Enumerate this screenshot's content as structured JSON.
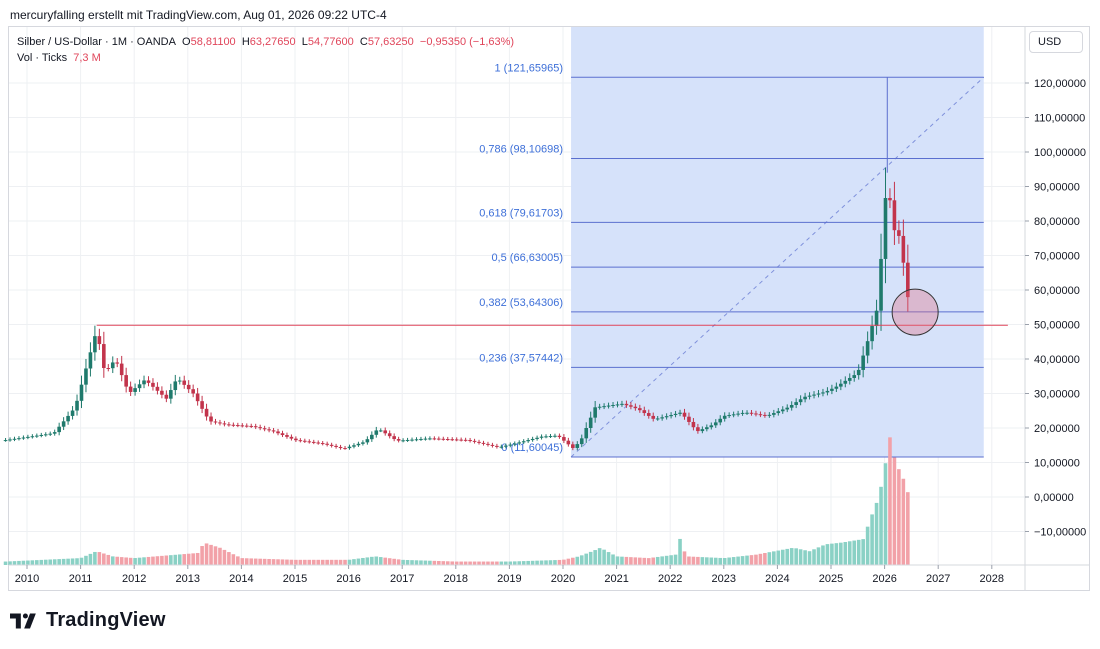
{
  "header": {
    "attribution": "mercuryfalling erstellt mit TradingView.com, Aug 01, 2026 09:22 UTC-4"
  },
  "legend": {
    "symbol": "Silber / US-Dollar · 1M · OANDA",
    "o_label": "O",
    "o_value": "58,81100",
    "h_label": "H",
    "h_value": "63,27650",
    "l_label": "L",
    "l_value": "54,77600",
    "c_label": "C",
    "c_value": "57,63250",
    "change": "−0,95350 (−1,63%)",
    "vol_label": "Vol · Ticks",
    "vol_value": "7,3 M"
  },
  "currency": "USD",
  "brand": {
    "name": "TradingView"
  },
  "chart_data": {
    "type": "candlestick",
    "title": "Silber / US-Dollar · 1M · OANDA",
    "ylim": [
      -20,
      130
    ],
    "y_ticks": [
      {
        "v": 120,
        "label": "120,00000"
      },
      {
        "v": 110,
        "label": "110,00000"
      },
      {
        "v": 100,
        "label": "100,00000"
      },
      {
        "v": 90,
        "label": "90,00000"
      },
      {
        "v": 80,
        "label": "80,00000"
      },
      {
        "v": 70,
        "label": "70,00000"
      },
      {
        "v": 60,
        "label": "60,00000"
      },
      {
        "v": 50,
        "label": "50,00000"
      },
      {
        "v": 40,
        "label": "40,00000"
      },
      {
        "v": 30,
        "label": "30,00000"
      },
      {
        "v": 20,
        "label": "20,00000"
      },
      {
        "v": 10,
        "label": "10,00000"
      },
      {
        "v": 0,
        "label": "0,00000"
      },
      {
        "v": -10,
        "label": "−10,00000"
      }
    ],
    "x_ticks": [
      {
        "v": 2010,
        "label": "2010"
      },
      {
        "v": 2011,
        "label": "2011"
      },
      {
        "v": 2012,
        "label": "2012"
      },
      {
        "v": 2013,
        "label": "2013"
      },
      {
        "v": 2014,
        "label": "2014"
      },
      {
        "v": 2015,
        "label": "2015"
      },
      {
        "v": 2016,
        "label": "2016"
      },
      {
        "v": 2017,
        "label": "2017"
      },
      {
        "v": 2018,
        "label": "2018"
      },
      {
        "v": 2019,
        "label": "2019"
      },
      {
        "v": 2020,
        "label": "2020"
      },
      {
        "v": 2021,
        "label": "2021"
      },
      {
        "v": 2022,
        "label": "2022"
      },
      {
        "v": 2023,
        "label": "2023"
      },
      {
        "v": 2024,
        "label": "2024"
      },
      {
        "v": 2025,
        "label": "2025"
      },
      {
        "v": 2026,
        "label": "2026"
      },
      {
        "v": 2027,
        "label": "2027"
      },
      {
        "v": 2028,
        "label": "2028"
      }
    ],
    "price_path": [
      [
        2009.6,
        16.5
      ],
      [
        2010.5,
        18.5
      ],
      [
        2010.9,
        26
      ],
      [
        2011.3,
        48.5
      ],
      [
        2011.45,
        36
      ],
      [
        2011.65,
        40
      ],
      [
        2011.9,
        30
      ],
      [
        2012.2,
        34
      ],
      [
        2012.6,
        28.5
      ],
      [
        2012.8,
        34.5
      ],
      [
        2013.1,
        30
      ],
      [
        2013.4,
        22
      ],
      [
        2013.7,
        21
      ],
      [
        2014.2,
        20.5
      ],
      [
        2014.6,
        19
      ],
      [
        2015.0,
        16.5
      ],
      [
        2015.5,
        15.5
      ],
      [
        2015.9,
        14
      ],
      [
        2016.3,
        16
      ],
      [
        2016.55,
        19.8
      ],
      [
        2016.9,
        16.3
      ],
      [
        2017.5,
        17
      ],
      [
        2018.2,
        16.5
      ],
      [
        2018.8,
        14.4
      ],
      [
        2019.1,
        15.5
      ],
      [
        2019.6,
        17.5
      ],
      [
        2019.9,
        17.8
      ],
      [
        2020.2,
        14
      ],
      [
        2020.35,
        17
      ],
      [
        2020.6,
        26
      ],
      [
        2021.1,
        27
      ],
      [
        2021.4,
        25.5
      ],
      [
        2021.7,
        22.5
      ],
      [
        2022.2,
        24.5
      ],
      [
        2022.5,
        19
      ],
      [
        2022.8,
        21
      ],
      [
        2023.0,
        23.5
      ],
      [
        2023.4,
        24.5
      ],
      [
        2023.8,
        23.5
      ],
      [
        2024.2,
        26
      ],
      [
        2024.5,
        29
      ],
      [
        2024.9,
        30.5
      ],
      [
        2025.1,
        32
      ],
      [
        2025.5,
        36
      ],
      [
        2025.7,
        46
      ],
      [
        2025.85,
        54
      ],
      [
        2025.95,
        72
      ],
      [
        2026.05,
        94
      ],
      [
        2026.15,
        78
      ],
      [
        2026.3,
        75
      ],
      [
        2026.42,
        58
      ],
      [
        2026.5,
        57.6
      ]
    ],
    "volume_path": [
      [
        2009.6,
        1
      ],
      [
        2011.0,
        2
      ],
      [
        2011.3,
        4
      ],
      [
        2011.6,
        2.5
      ],
      [
        2012.0,
        2
      ],
      [
        2013.2,
        3.5
      ],
      [
        2013.3,
        6.5
      ],
      [
        2013.6,
        5
      ],
      [
        2014.0,
        2
      ],
      [
        2015.0,
        1.5
      ],
      [
        2016.0,
        1.5
      ],
      [
        2016.5,
        2.5
      ],
      [
        2017.0,
        1.5
      ],
      [
        2018.0,
        1
      ],
      [
        2019.0,
        1
      ],
      [
        2020.0,
        1.5
      ],
      [
        2020.3,
        2.5
      ],
      [
        2020.55,
        4
      ],
      [
        2020.7,
        5
      ],
      [
        2021.0,
        2.5
      ],
      [
        2021.6,
        2
      ],
      [
        2022.1,
        3
      ],
      [
        2022.15,
        9
      ],
      [
        2022.3,
        2.5
      ],
      [
        2023.0,
        2
      ],
      [
        2023.6,
        3
      ],
      [
        2024.3,
        5
      ],
      [
        2024.6,
        4
      ],
      [
        2024.9,
        6
      ],
      [
        2025.2,
        6.5
      ],
      [
        2025.6,
        7.5
      ],
      [
        2025.75,
        14
      ],
      [
        2025.9,
        20
      ],
      [
        2026.0,
        28
      ],
      [
        2026.1,
        37
      ],
      [
        2026.2,
        30
      ],
      [
        2026.35,
        25
      ],
      [
        2026.5,
        18
      ]
    ],
    "fibonacci": {
      "x_start": 2020.15,
      "x_end": 2027.85,
      "levels": [
        {
          "ratio": 1,
          "price": 121.65965,
          "label": "1 (121,65965)"
        },
        {
          "ratio": 0.786,
          "price": 98.10698,
          "label": "0,786 (98,10698)"
        },
        {
          "ratio": 0.618,
          "price": 79.61703,
          "label": "0,618 (79,61703)"
        },
        {
          "ratio": 0.5,
          "price": 66.63005,
          "label": "0,5 (66,63005)"
        },
        {
          "ratio": 0.382,
          "price": 53.64306,
          "label": "0,382 (53,64306)"
        },
        {
          "ratio": 0.236,
          "price": 37.57442,
          "label": "0,236 (37,57442)"
        },
        {
          "ratio": 0,
          "price": 11.60045,
          "label": "0 (11,60045)"
        }
      ]
    },
    "horizontal_line": {
      "price": 49.8,
      "x_start": 2011.3,
      "x_end": 2028.3,
      "color": "#e0455a"
    },
    "highlight_circle": {
      "x": 2026.57,
      "y": 53.6,
      "color": "#e36b7d"
    },
    "grid": true
  },
  "colors": {
    "up": "#1f7a6c",
    "down": "#c2344c",
    "vol_up": "#8ad1c5",
    "vol_down": "#f2a1a8",
    "fib_fill": "#d4e0fa",
    "fib_line": "#5b6fcf",
    "fib_text": "#3d6fd8",
    "grid": "#eef0f3",
    "axis_text": "#131722"
  }
}
